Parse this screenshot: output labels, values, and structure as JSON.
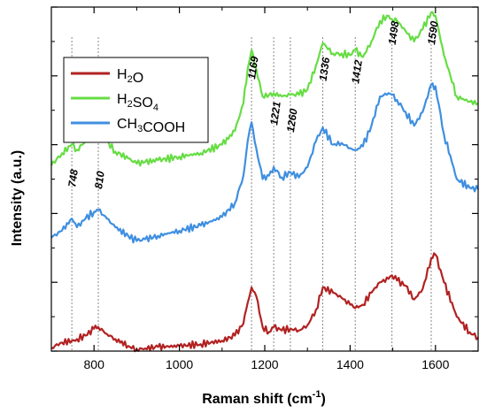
{
  "chart_data": {
    "type": "line",
    "xlabel": "Raman shift (cm",
    "xlabel_sup": "-1",
    "xlabel_end": ")",
    "ylabel": "Intensity (a.u.)",
    "xlim": [
      700,
      1700
    ],
    "ylim": [
      0,
      10
    ],
    "x_ticks": [
      800,
      1000,
      1200,
      1400,
      1600
    ],
    "x_tick_labels": [
      "800",
      "1000",
      "1200",
      "1400",
      "1600"
    ],
    "y_tick_labels_shown": false,
    "grid": false,
    "legend_position": "top-left",
    "peaks": [
      {
        "x": 748,
        "label": "748"
      },
      {
        "x": 810,
        "label": "810"
      },
      {
        "x": 1169,
        "label": "1169"
      },
      {
        "x": 1221,
        "label": "1221"
      },
      {
        "x": 1260,
        "label": "1260"
      },
      {
        "x": 1336,
        "label": "1336"
      },
      {
        "x": 1412,
        "label": "1412"
      },
      {
        "x": 1498,
        "label": "1498"
      },
      {
        "x": 1590,
        "label": "1590"
      }
    ],
    "series": [
      {
        "name": "H2O",
        "legend_parts": [
          [
            "H",
            ""
          ],
          [
            "2",
            "sub"
          ],
          [
            "O",
            ""
          ]
        ],
        "color": "#b22222",
        "x": [
          700,
          725,
          748,
          760,
          780,
          800,
          810,
          830,
          850,
          880,
          900,
          920,
          950,
          1000,
          1050,
          1100,
          1130,
          1150,
          1160,
          1169,
          1180,
          1195,
          1210,
          1221,
          1240,
          1260,
          1280,
          1300,
          1320,
          1336,
          1360,
          1380,
          1400,
          1412,
          1430,
          1450,
          1470,
          1490,
          1498,
          1510,
          1530,
          1550,
          1570,
          1590,
          1600,
          1620,
          1650,
          1680,
          1700
        ],
        "y": [
          0.1,
          0.25,
          0.3,
          0.35,
          0.45,
          0.65,
          0.7,
          0.5,
          0.35,
          0.15,
          0.05,
          0.08,
          0.12,
          0.15,
          0.2,
          0.3,
          0.45,
          0.8,
          1.4,
          1.85,
          1.6,
          0.7,
          0.55,
          0.7,
          0.6,
          0.65,
          0.6,
          0.75,
          1.2,
          1.85,
          1.7,
          1.55,
          1.35,
          1.25,
          1.35,
          1.7,
          2.0,
          2.1,
          2.2,
          2.05,
          1.9,
          1.5,
          1.8,
          2.7,
          2.8,
          2.0,
          1.0,
          0.55,
          0.4
        ]
      },
      {
        "name": "H2SO4",
        "legend_parts": [
          [
            "H",
            ""
          ],
          [
            "2",
            "sub"
          ],
          [
            "SO",
            ""
          ],
          [
            "4",
            "sub"
          ]
        ],
        "color": "#66dd44",
        "x": [
          700,
          725,
          748,
          760,
          780,
          800,
          810,
          830,
          850,
          880,
          900,
          920,
          950,
          1000,
          1050,
          1100,
          1130,
          1150,
          1160,
          1169,
          1180,
          1195,
          1210,
          1221,
          1240,
          1260,
          1280,
          1300,
          1320,
          1336,
          1360,
          1380,
          1400,
          1412,
          1430,
          1450,
          1470,
          1490,
          1498,
          1510,
          1530,
          1550,
          1570,
          1590,
          1600,
          1620,
          1650,
          1680,
          1700
        ],
        "y": [
          5.4,
          5.75,
          6.0,
          5.85,
          6.1,
          6.3,
          6.35,
          6.1,
          5.8,
          5.6,
          5.45,
          5.5,
          5.55,
          5.65,
          5.75,
          6.0,
          6.4,
          7.2,
          8.2,
          8.75,
          8.2,
          7.4,
          7.45,
          7.5,
          7.4,
          7.45,
          7.45,
          7.6,
          8.3,
          8.95,
          8.65,
          8.65,
          8.6,
          8.75,
          8.55,
          9.0,
          9.6,
          9.75,
          9.65,
          9.6,
          9.3,
          9.0,
          9.35,
          9.85,
          9.75,
          8.6,
          7.4,
          7.25,
          7.2
        ]
      },
      {
        "name": "CH3COOH",
        "legend_parts": [
          [
            "CH",
            ""
          ],
          [
            "3",
            "sub"
          ],
          [
            "COOH",
            ""
          ]
        ],
        "color": "#3f8fe0",
        "x": [
          700,
          725,
          748,
          760,
          780,
          800,
          810,
          830,
          850,
          880,
          900,
          920,
          950,
          1000,
          1050,
          1100,
          1130,
          1150,
          1160,
          1169,
          1180,
          1195,
          1210,
          1221,
          1240,
          1260,
          1280,
          1300,
          1320,
          1336,
          1360,
          1380,
          1400,
          1412,
          1430,
          1450,
          1470,
          1490,
          1498,
          1510,
          1530,
          1550,
          1570,
          1590,
          1600,
          1620,
          1650,
          1680,
          1700
        ],
        "y": [
          3.3,
          3.5,
          3.85,
          3.6,
          3.85,
          4.05,
          4.1,
          3.85,
          3.6,
          3.35,
          3.2,
          3.25,
          3.35,
          3.5,
          3.65,
          3.9,
          4.3,
          5.1,
          6.1,
          6.65,
          5.9,
          5.0,
          5.1,
          5.35,
          5.05,
          5.2,
          5.05,
          5.35,
          6.1,
          6.5,
          6.0,
          6.05,
          5.9,
          5.85,
          5.95,
          6.55,
          7.4,
          7.5,
          7.45,
          7.3,
          6.95,
          6.55,
          6.95,
          7.75,
          7.7,
          6.3,
          5.0,
          4.75,
          4.7
        ]
      }
    ]
  }
}
